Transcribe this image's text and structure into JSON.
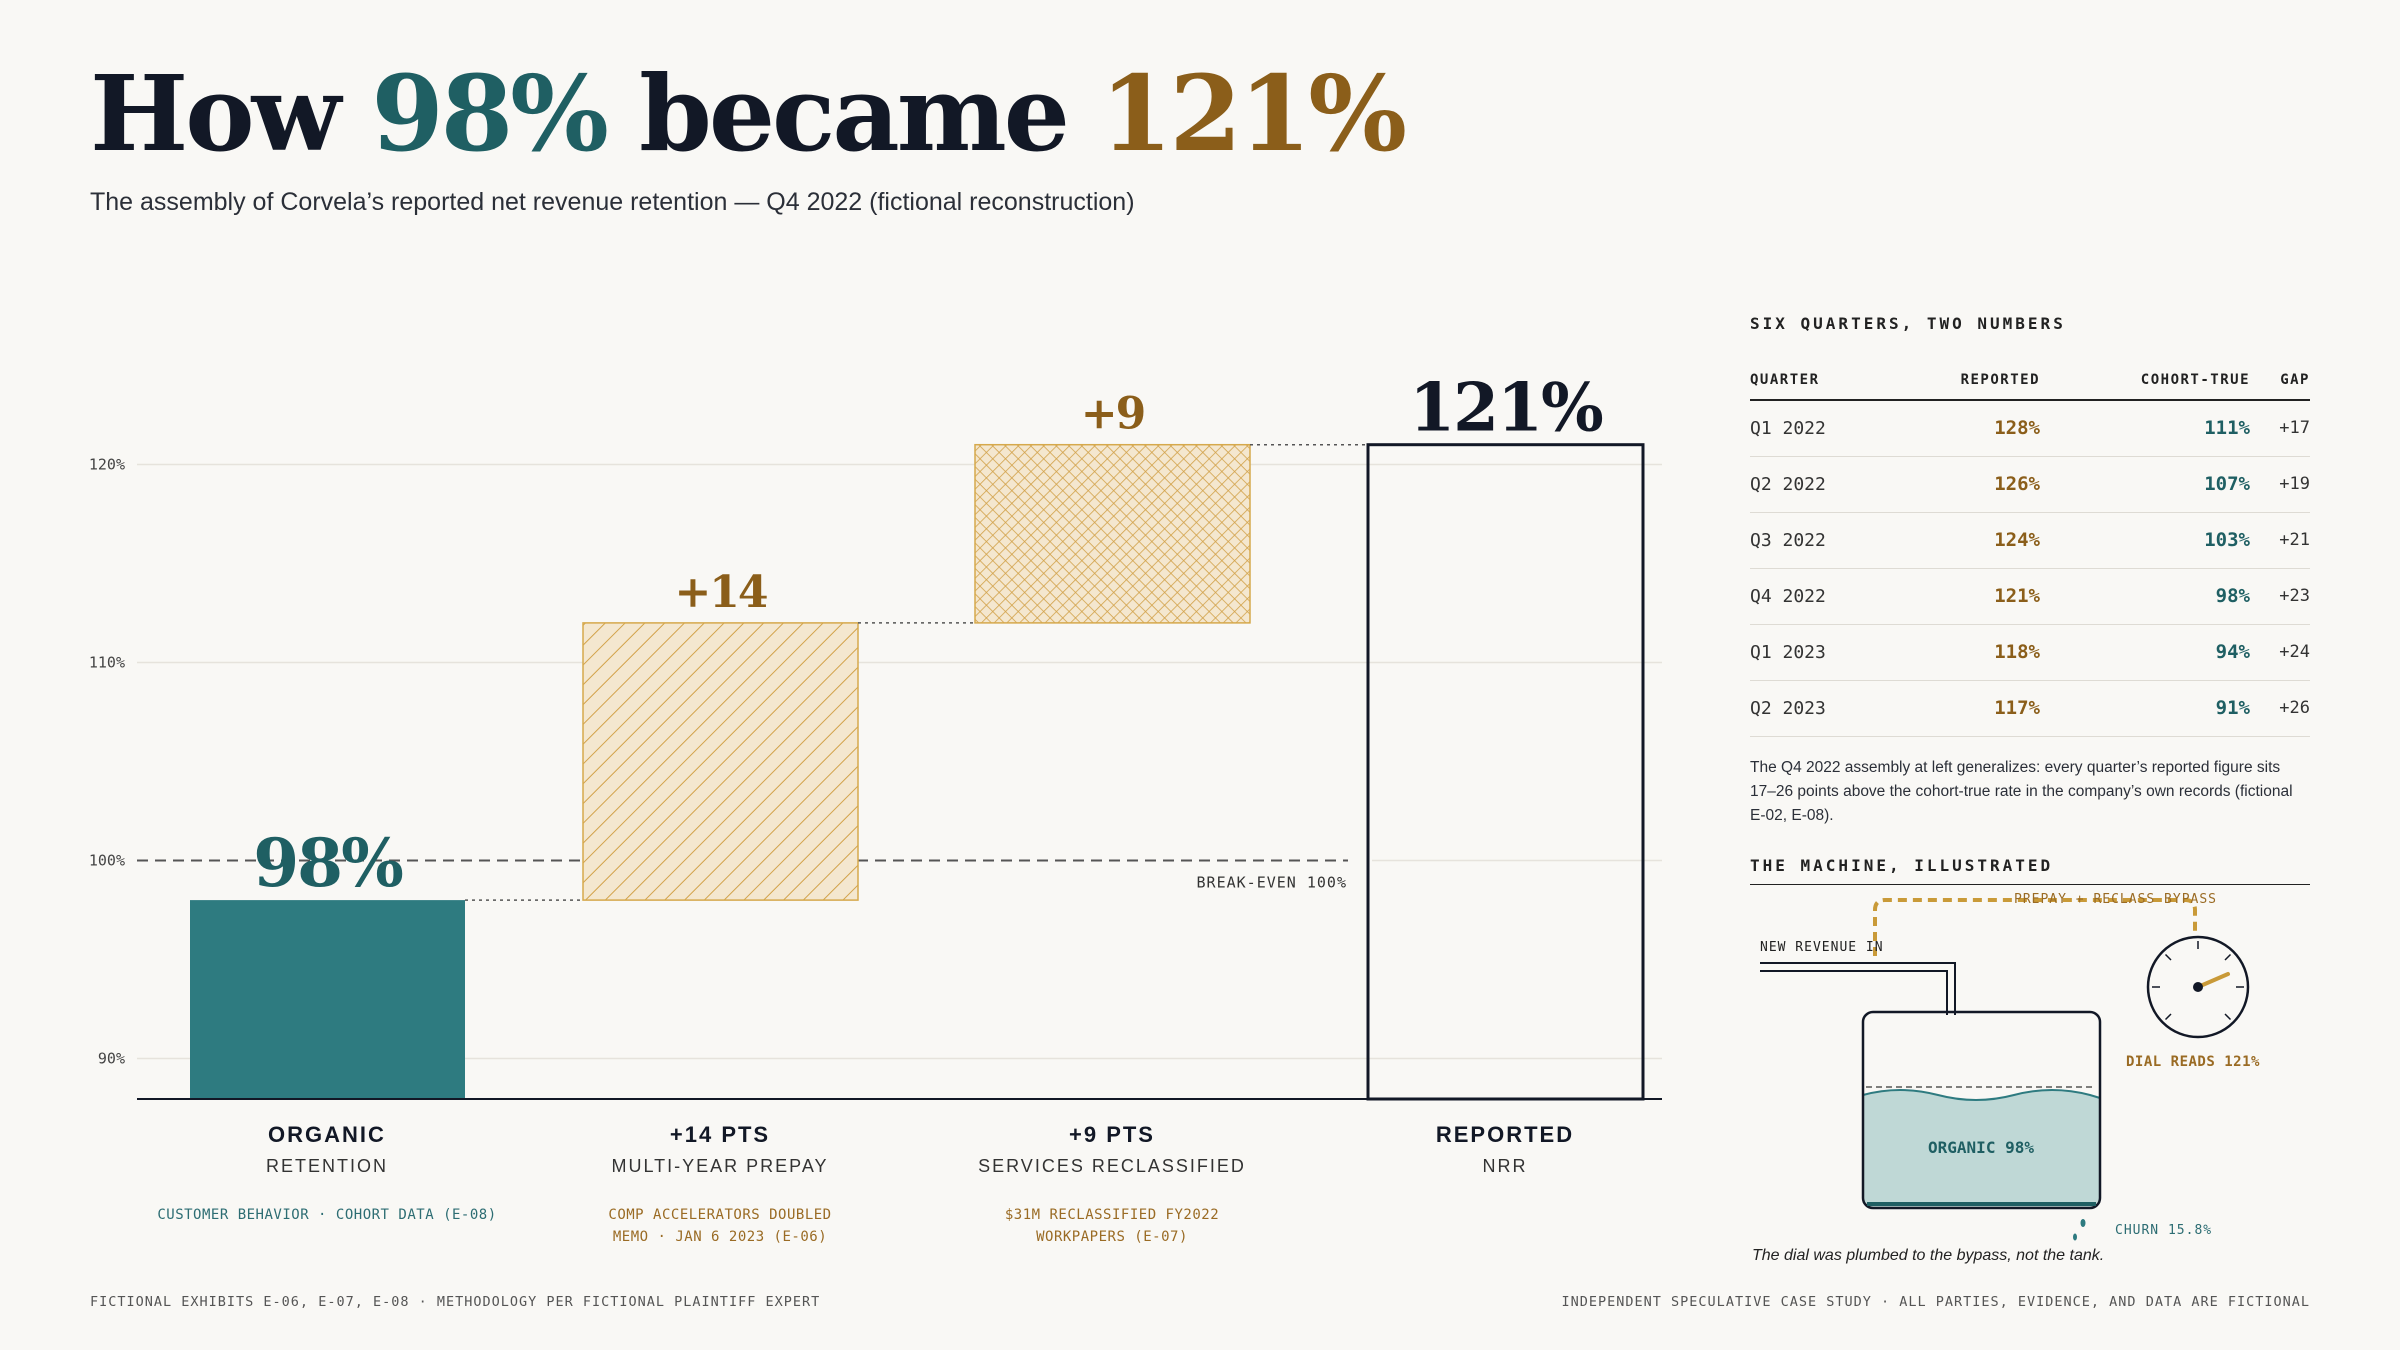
{
  "header": {
    "title_part1": "How ",
    "title_part2": "98%",
    "title_part3": " became ",
    "title_part4": "121%",
    "subtitle": "The assembly of Corvela’s reported net revenue retention — Q4 2022 (fictional reconstruction)"
  },
  "colors": {
    "teal": "#2e7b80",
    "teal_dark": "#1f5f63",
    "gold": "#8b5e1a",
    "gold_light": "#d6a94c",
    "ink": "#121826"
  },
  "chart_data": {
    "type": "bar",
    "subtype": "waterfall",
    "ylim": [
      88,
      124
    ],
    "yticks": [
      "90%",
      "100%",
      "110%",
      "120%"
    ],
    "ytick_values": [
      90,
      100,
      110,
      120
    ],
    "grid": true,
    "reference_line": {
      "value": 100,
      "label": "BREAK-EVEN 100%"
    },
    "bars": [
      {
        "kind": "total",
        "start": 0,
        "end": 98,
        "value_label": "98%",
        "style": "teal"
      },
      {
        "kind": "delta",
        "start": 98,
        "end": 112,
        "value_label": "+14",
        "style": "diagonal-hatch"
      },
      {
        "kind": "delta",
        "start": 112,
        "end": 121,
        "value_label": "+9",
        "style": "cross-hatch"
      },
      {
        "kind": "total",
        "start": 0,
        "end": 121,
        "value_label": "121%",
        "style": "outline"
      }
    ],
    "categories": [
      {
        "title": "ORGANIC",
        "sub": "RETENTION",
        "note": [
          "CUSTOMER BEHAVIOR · COHORT DATA (E-08)"
        ],
        "note_color": "teal"
      },
      {
        "title": "+14 PTS",
        "sub": "MULTI-YEAR PREPAY",
        "note": [
          "COMP ACCELERATORS DOUBLED",
          "MEMO · JAN 6 2023 (E-06)"
        ],
        "note_color": "gold"
      },
      {
        "title": "+9 PTS",
        "sub": "SERVICES RECLASSIFIED",
        "note": [
          "$31M RECLASSIFIED FY2022",
          "WORKPAPERS (E-07)"
        ],
        "note_color": "gold"
      },
      {
        "title": "REPORTED",
        "sub": "NRR",
        "note": [],
        "note_color": "teal"
      }
    ]
  },
  "table": {
    "heading": "SIX QUARTERS, TWO NUMBERS",
    "columns": [
      "QUARTER",
      "REPORTED",
      "COHORT-TRUE",
      "GAP"
    ],
    "rows": [
      {
        "quarter": "Q1 2022",
        "reported": "128%",
        "cohort": "111%",
        "gap": "+17"
      },
      {
        "quarter": "Q2 2022",
        "reported": "126%",
        "cohort": "107%",
        "gap": "+19"
      },
      {
        "quarter": "Q3 2022",
        "reported": "124%",
        "cohort": "103%",
        "gap": "+21"
      },
      {
        "quarter": "Q4 2022",
        "reported": "121%",
        "cohort": "98%",
        "gap": "+23"
      },
      {
        "quarter": "Q1 2023",
        "reported": "118%",
        "cohort": "94%",
        "gap": "+24"
      },
      {
        "quarter": "Q2 2023",
        "reported": "117%",
        "cohort": "91%",
        "gap": "+26"
      }
    ],
    "note": "The Q4 2022 assembly at left generalizes: every quarter’s reported figure sits 17–26 points above the cohort-true rate in the company’s own records (fictional E-02, E-08)."
  },
  "machine": {
    "heading": "THE MACHINE, ILLUSTRATED",
    "bypass_label": "PREPAY + RECLASS BYPASS",
    "inflow_label": "NEW REVENUE IN",
    "tank_label": "ORGANIC 98%",
    "dial_label": "DIAL READS 121%",
    "churn_label": "CHURN 15.8%",
    "caption": "The dial was plumbed to the bypass, not the tank."
  },
  "footer": {
    "left": "FICTIONAL EXHIBITS E-06, E-07, E-08  ·  METHODOLOGY PER FICTIONAL PLAINTIFF EXPERT",
    "right": "INDEPENDENT SPECULATIVE CASE STUDY · ALL PARTIES, EVIDENCE, AND DATA ARE FICTIONAL"
  }
}
